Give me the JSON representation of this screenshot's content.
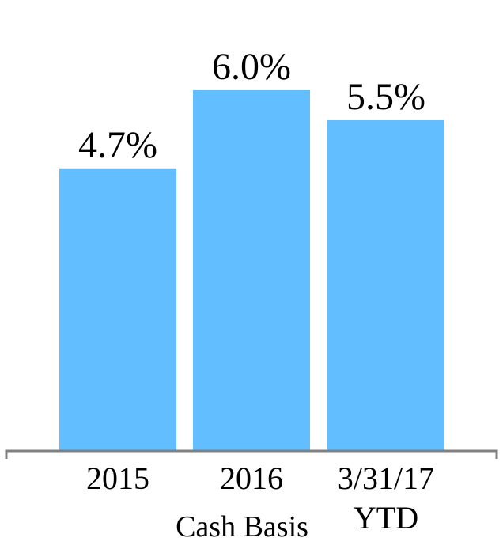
{
  "chart_data": {
    "type": "bar",
    "categories": [
      "2015",
      "2016",
      "3/31/17\nYTD"
    ],
    "category_lines": [
      [
        "2015"
      ],
      [
        "2016"
      ],
      [
        "3/31/17",
        "YTD"
      ]
    ],
    "values": [
      4.7,
      6.0,
      5.5
    ],
    "data_labels": [
      "4.7%",
      "6.0%",
      "5.5%"
    ],
    "title": "",
    "xlabel": "Cash Basis",
    "ylabel": "",
    "ylim": [
      0,
      7.5
    ],
    "grid": false,
    "legend": "none",
    "bar_color": "#63BEFF",
    "axis_color": "#808080"
  }
}
